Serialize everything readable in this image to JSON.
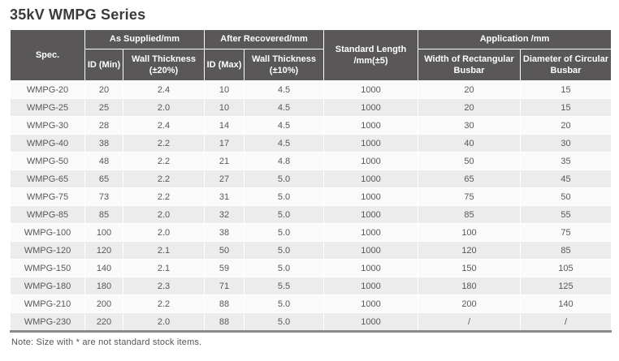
{
  "page_title": "35kV WMPG Series",
  "colors": {
    "header_bg": "#595757",
    "header_text": "#ffffff",
    "row_odd": "#fafafa",
    "row_even": "#ececec",
    "body_text": "#595757",
    "title_text": "#3a3a3a",
    "note_text": "#555555",
    "bottom_border": "#8a8a8a",
    "separator": "#ffffff"
  },
  "table": {
    "header": {
      "spec": "Spec.",
      "as_supplied": "As Supplied/mm",
      "after_recovered": "After Recovered/mm",
      "standard_length": "Standard Length /mm(±5)",
      "application": "Application /mm",
      "id_min": "ID (Min)",
      "wall_thickness_20": "Wall Thickness (±20%)",
      "id_max": "ID (Max)",
      "wall_thickness_10": "Wall Thickness (±10%)",
      "width_rect_busbar": "Width of Rectangular Busbar",
      "dia_circ_busbar": "Diameter of Circular Busbar"
    },
    "rows": [
      [
        "WMPG-20",
        "20",
        "2.4",
        "10",
        "4.5",
        "1000",
        "20",
        "15"
      ],
      [
        "WMPG-25",
        "25",
        "2.0",
        "10",
        "4.5",
        "1000",
        "20",
        "15"
      ],
      [
        "WMPG-30",
        "28",
        "2.4",
        "14",
        "4.5",
        "1000",
        "30",
        "20"
      ],
      [
        "WMPG-40",
        "38",
        "2.2",
        "17",
        "4.5",
        "1000",
        "40",
        "30"
      ],
      [
        "WMPG-50",
        "48",
        "2.2",
        "21",
        "4.8",
        "1000",
        "50",
        "35"
      ],
      [
        "WMPG-65",
        "65",
        "2.2",
        "27",
        "5.0",
        "1000",
        "65",
        "45"
      ],
      [
        "WMPG-75",
        "73",
        "2.2",
        "31",
        "5.0",
        "1000",
        "75",
        "50"
      ],
      [
        "WMPG-85",
        "85",
        "2.0",
        "32",
        "5.0",
        "1000",
        "85",
        "55"
      ],
      [
        "WMPG-100",
        "100",
        "2.0",
        "38",
        "5.0",
        "1000",
        "100",
        "75"
      ],
      [
        "WMPG-120",
        "120",
        "2.1",
        "50",
        "5.0",
        "1000",
        "120",
        "85"
      ],
      [
        "WMPG-150",
        "140",
        "2.1",
        "59",
        "5.0",
        "1000",
        "150",
        "105"
      ],
      [
        "WMPG-180",
        "180",
        "2.3",
        "71",
        "5.5",
        "1000",
        "180",
        "125"
      ],
      [
        "WMPG-210",
        "200",
        "2.2",
        "88",
        "5.0",
        "1000",
        "200",
        "140"
      ],
      [
        "WMPG-230",
        "220",
        "2.0",
        "88",
        "5.0",
        "1000",
        "/",
        "/"
      ]
    ]
  },
  "note": "Note: Size with * are not standard stock items."
}
